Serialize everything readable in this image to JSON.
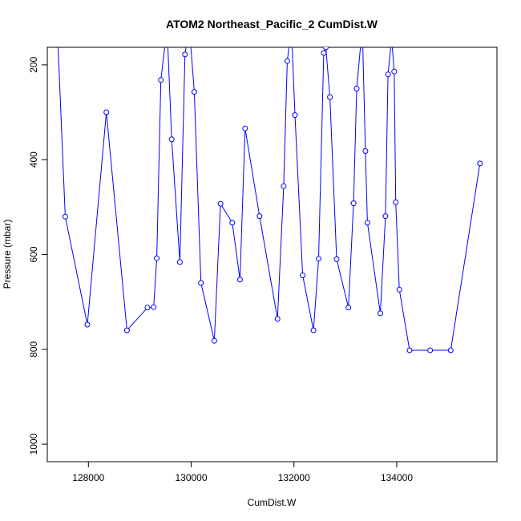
{
  "chart_data": {
    "type": "line",
    "title": "ATOM2 Northeast_Pacific_2 CumDist.W",
    "xlabel": "CumDist.W",
    "ylabel": "Pressure (mbar)",
    "xlim": [
      127200,
      135950
    ],
    "ylim": [
      1037,
      163
    ],
    "y_reversed": true,
    "x_ticks": [
      128000,
      130000,
      132000,
      134000
    ],
    "x_tick_labels": [
      "128000",
      "130000",
      "132000",
      "134000"
    ],
    "y_ticks": [
      200,
      400,
      600,
      800,
      1000
    ],
    "y_tick_labels": [
      "200",
      "400",
      "600",
      "800",
      "1000"
    ],
    "grid": false,
    "legend": "none",
    "series": [
      {
        "color": "#0000ff",
        "marker": "open-circle",
        "x": [
          127400,
          127550,
          127980,
          128350,
          128750,
          129150,
          129270,
          129330,
          129410,
          129530,
          129620,
          129780,
          129880,
          129960,
          130060,
          130190,
          130450,
          130570,
          130800,
          130950,
          131050,
          131330,
          131680,
          131800,
          131870,
          131950,
          132020,
          132170,
          132380,
          132480,
          132580,
          132620,
          132700,
          132830,
          133060,
          133160,
          133220,
          133330,
          133390,
          133430,
          133680,
          133780,
          133830,
          133900,
          133950,
          133980,
          134050,
          134250,
          134650,
          135050,
          135620
        ],
        "y": [
          135,
          520,
          748,
          300,
          760,
          712,
          711,
          608,
          232,
          120,
          357,
          616,
          178,
          115,
          257,
          660,
          782,
          493,
          533,
          653,
          334,
          519,
          736,
          456,
          192,
          120,
          306,
          644,
          760,
          609,
          175,
          163,
          268,
          610,
          712,
          492,
          250,
          120,
          382,
          533,
          724,
          519,
          220,
          145,
          214,
          490,
          674,
          802,
          802,
          802,
          408
        ]
      }
    ]
  }
}
